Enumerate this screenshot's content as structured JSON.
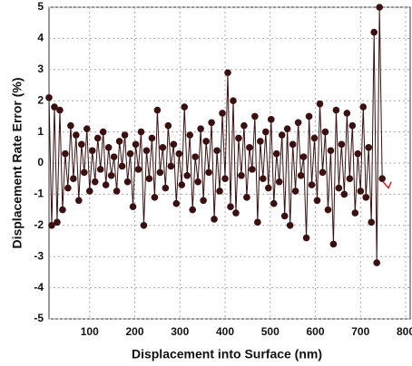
{
  "chart_data": {
    "type": "line",
    "x_label": "Displacement into Surface (nm)",
    "y_label": "Displacement Rate  Error (%)",
    "xlim": [
      10,
      810
    ],
    "ylim": [
      -5,
      5
    ],
    "xticks": [
      100,
      200,
      300,
      400,
      500,
      600,
      700,
      800
    ],
    "yticks": [
      -5,
      -4,
      -3,
      -2,
      -1,
      0,
      1,
      2,
      3,
      4,
      5
    ],
    "grid": true,
    "series": [
      {
        "color": "#3a1010",
        "marker": true,
        "x": [
          10,
          16,
          22,
          28,
          34,
          40,
          46,
          52,
          58,
          64,
          70,
          76,
          82,
          88,
          94,
          100,
          106,
          112,
          118,
          124,
          130,
          136,
          142,
          148,
          154,
          160,
          166,
          172,
          178,
          184,
          190,
          196,
          202,
          208,
          214,
          220,
          226,
          232,
          238,
          244,
          250,
          256,
          262,
          268,
          274,
          280,
          286,
          292,
          298,
          304,
          310,
          316,
          322,
          328,
          334,
          340,
          346,
          352,
          358,
          364,
          370,
          376,
          382,
          388,
          394,
          400,
          406,
          412,
          418,
          424,
          430,
          436,
          442,
          448,
          454,
          460,
          466,
          472,
          478,
          484,
          490,
          496,
          502,
          508,
          514,
          520,
          526,
          532,
          538,
          544,
          550,
          556,
          562,
          568,
          574,
          580,
          586,
          592,
          598,
          604,
          610,
          616,
          622,
          628,
          634,
          640,
          646,
          652,
          658,
          664,
          670,
          676,
          682,
          688,
          694,
          700,
          706,
          712,
          718,
          724,
          730,
          736,
          742,
          748
        ],
        "values": [
          2.1,
          -2.0,
          1.8,
          -1.9,
          1.7,
          -1.5,
          0.3,
          -0.8,
          1.2,
          -0.5,
          0.9,
          -1.2,
          0.6,
          -0.3,
          1.1,
          -0.9,
          0.4,
          -0.6,
          0.8,
          -0.2,
          1.0,
          -0.7,
          0.5,
          -0.4,
          0.2,
          -0.9,
          0.7,
          -0.1,
          0.9,
          -0.6,
          0.3,
          -1.4,
          0.6,
          -0.2,
          1.0,
          -2.0,
          0.4,
          -0.5,
          0.8,
          -1.1,
          1.7,
          -0.3,
          0.5,
          -0.8,
          1.2,
          -0.1,
          0.6,
          -1.3,
          0.3,
          -0.7,
          1.8,
          -0.4,
          0.9,
          -1.5,
          0.2,
          -0.6,
          1.1,
          -1.2,
          0.7,
          -0.3,
          1.3,
          -1.8,
          0.4,
          -0.9,
          1.6,
          -0.5,
          2.9,
          -1.4,
          2.0,
          -1.6,
          0.8,
          -0.4,
          1.2,
          -1.1,
          0.5,
          -0.2,
          1.5,
          -1.9,
          0.7,
          -0.5,
          1.0,
          -0.8,
          1.4,
          -1.3,
          0.3,
          -0.6,
          0.9,
          -1.7,
          1.1,
          -2.0,
          0.6,
          -0.9,
          1.3,
          -0.4,
          0.2,
          -2.4,
          1.5,
          -0.7,
          0.8,
          -1.2,
          1.9,
          -0.3,
          1.0,
          -1.5,
          0.4,
          -2.6,
          1.7,
          -0.8,
          0.6,
          -1.0,
          1.6,
          -0.5,
          1.2,
          -1.6,
          0.3,
          -0.9,
          1.8,
          -1.1,
          0.5,
          -1.9,
          4.2,
          -3.2,
          5.0,
          -0.5
        ]
      },
      {
        "color": "#e02020",
        "marker": false,
        "x": [
          750,
          756,
          762,
          768
        ],
        "values": [
          -0.6,
          -0.7,
          -0.8,
          -0.6
        ]
      }
    ]
  }
}
